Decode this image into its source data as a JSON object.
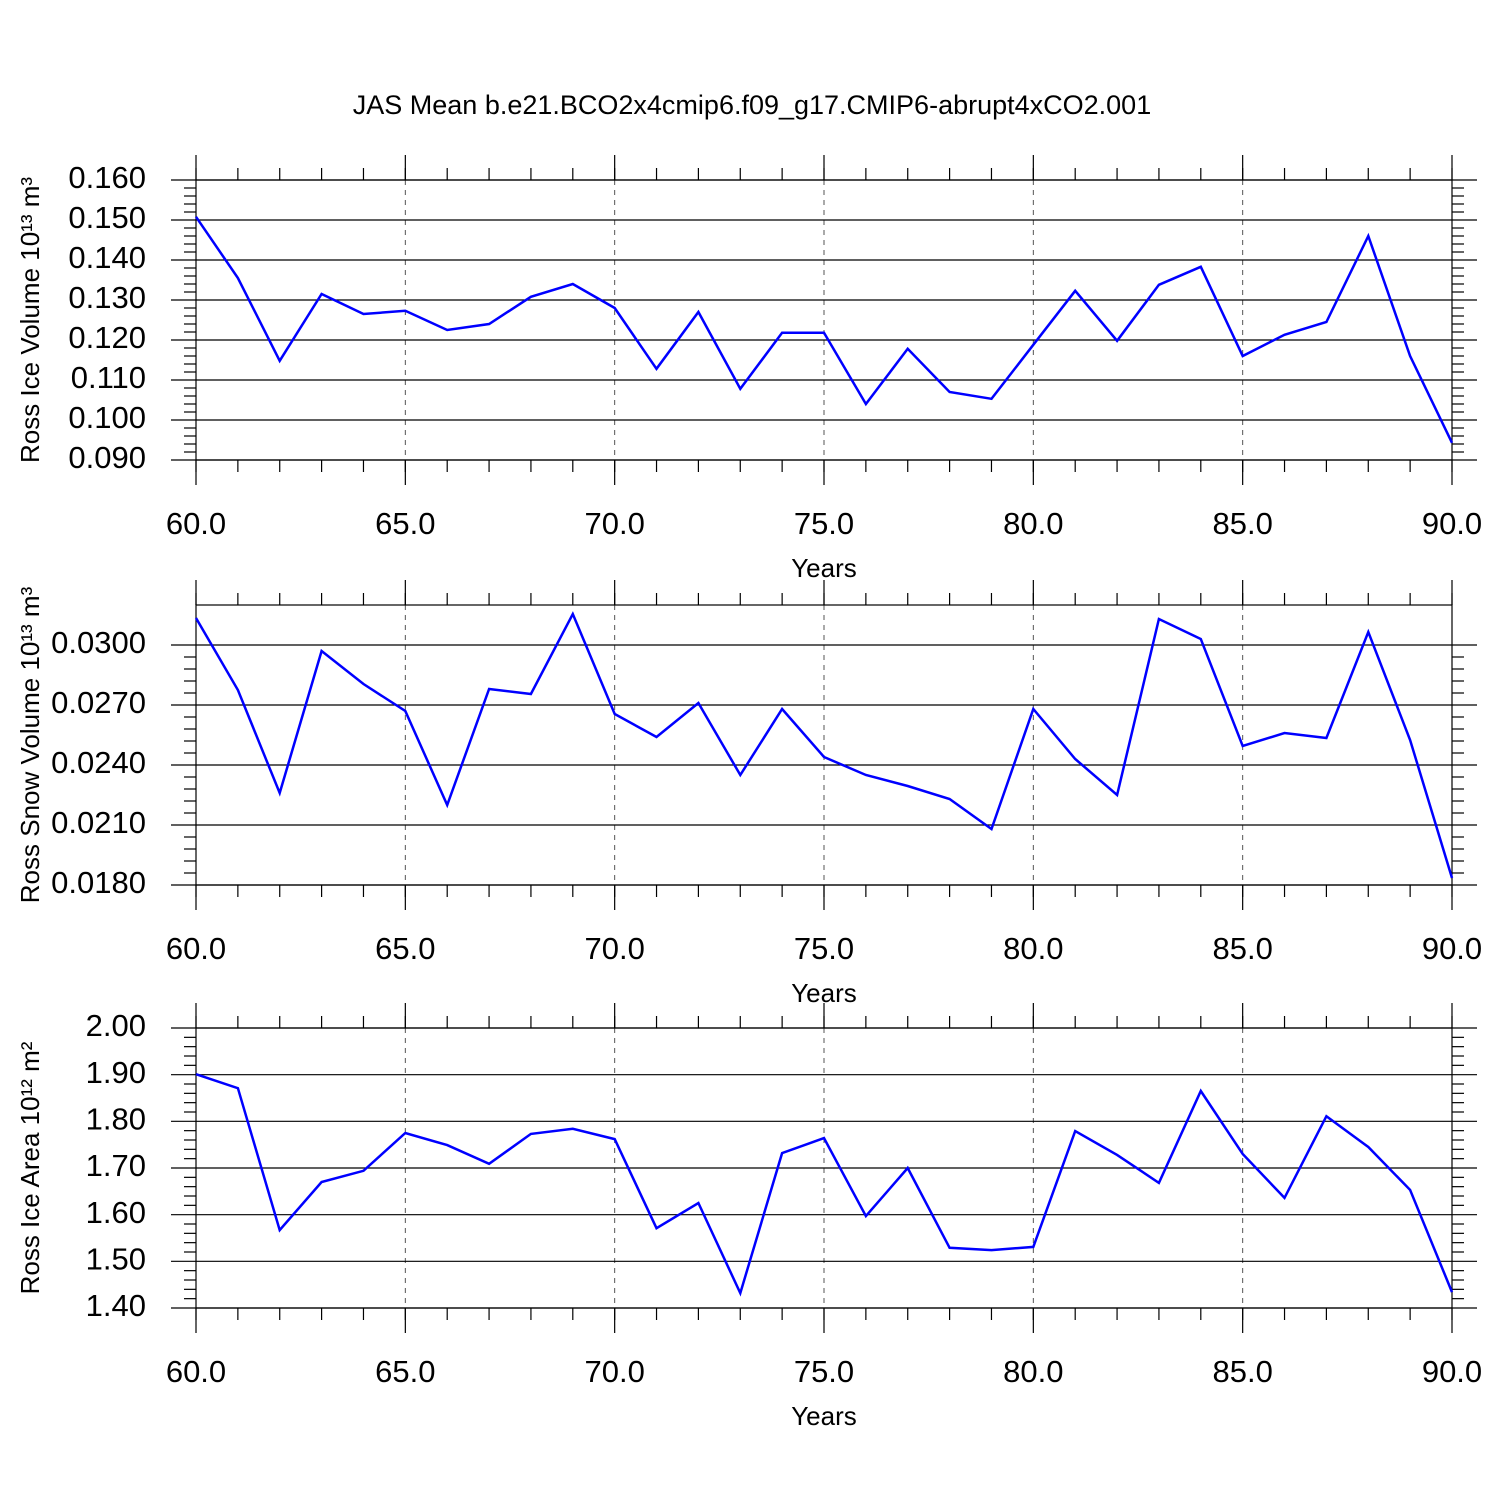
{
  "chart_data": [
    {
      "type": "line",
      "title": "JAS Mean b.e21.BCO2x4cmip6.f09_g17.CMIP6-abrupt4xCO2.001",
      "ylabel": "Ross Ice Volume 10¹³ m³",
      "xlabel": "Years",
      "x": [
        60,
        61,
        62,
        63,
        64,
        65,
        66,
        67,
        68,
        69,
        70,
        71,
        72,
        73,
        74,
        75,
        76,
        77,
        78,
        79,
        80,
        81,
        82,
        83,
        84,
        85,
        86,
        87,
        88,
        89,
        90
      ],
      "values": [
        0.1508,
        0.1355,
        0.1148,
        0.1315,
        0.1265,
        0.1273,
        0.1225,
        0.124,
        0.1308,
        0.134,
        0.128,
        0.1128,
        0.127,
        0.1078,
        0.1218,
        0.1218,
        0.104,
        0.1178,
        0.107,
        0.1053,
        0.1188,
        0.1323,
        0.1198,
        0.1338,
        0.1383,
        0.116,
        0.1213,
        0.1245,
        0.146,
        0.116,
        0.0943
      ],
      "color": "#0000ff",
      "xlim": [
        60,
        90
      ],
      "xticks": [
        {
          "value": 60,
          "label": "60.0"
        },
        {
          "value": 65,
          "label": "65.0"
        },
        {
          "value": 70,
          "label": "70.0"
        },
        {
          "value": 75,
          "label": "75.0"
        },
        {
          "value": 80,
          "label": "80.0"
        },
        {
          "value": 85,
          "label": "85.0"
        },
        {
          "value": 90,
          "label": "90.0"
        }
      ],
      "ylim": [
        0.09,
        0.16
      ],
      "yticks": [
        {
          "value": 0.09,
          "label": "0.090"
        },
        {
          "value": 0.1,
          "label": "0.100"
        },
        {
          "value": 0.11,
          "label": "0.110"
        },
        {
          "value": 0.12,
          "label": "0.120"
        },
        {
          "value": 0.13,
          "label": "0.130"
        },
        {
          "value": 0.14,
          "label": "0.140"
        },
        {
          "value": 0.15,
          "label": "0.150"
        },
        {
          "value": 0.16,
          "label": "0.160"
        }
      ],
      "xgrid": true
    },
    {
      "type": "line",
      "ylabel": "Ross Snow Volume 10¹³ m³",
      "xlabel": "Years",
      "x": [
        60,
        61,
        62,
        63,
        64,
        65,
        66,
        67,
        68,
        69,
        70,
        71,
        72,
        73,
        74,
        75,
        76,
        77,
        78,
        79,
        80,
        81,
        82,
        83,
        84,
        85,
        86,
        87,
        88,
        89,
        90
      ],
      "values": [
        0.03135,
        0.02775,
        0.0226,
        0.0297,
        0.02805,
        0.0267,
        0.022,
        0.0278,
        0.02755,
        0.03155,
        0.02655,
        0.0254,
        0.0271,
        0.0235,
        0.0268,
        0.0244,
        0.0235,
        0.02295,
        0.0223,
        0.0208,
        0.0268,
        0.0243,
        0.0225,
        0.0313,
        0.0303,
        0.02495,
        0.0256,
        0.02535,
        0.03065,
        0.02525,
        0.01835
      ],
      "color": "#0000ff",
      "xlim": [
        60,
        90
      ],
      "xticks": [
        {
          "value": 60,
          "label": "60.0"
        },
        {
          "value": 65,
          "label": "65.0"
        },
        {
          "value": 70,
          "label": "70.0"
        },
        {
          "value": 75,
          "label": "75.0"
        },
        {
          "value": 80,
          "label": "80.0"
        },
        {
          "value": 85,
          "label": "85.0"
        },
        {
          "value": 90,
          "label": "90.0"
        }
      ],
      "ylim": [
        0.018,
        0.032
      ],
      "yticks": [
        {
          "value": 0.018,
          "label": "0.0180"
        },
        {
          "value": 0.021,
          "label": "0.0210"
        },
        {
          "value": 0.024,
          "label": "0.0240"
        },
        {
          "value": 0.027,
          "label": "0.0270"
        },
        {
          "value": 0.03,
          "label": "0.0300"
        }
      ],
      "xgrid": true
    },
    {
      "type": "line",
      "ylabel": "Ross Ice Area 10¹² m²",
      "xlabel": "Years",
      "x": [
        60,
        61,
        62,
        63,
        64,
        65,
        66,
        67,
        68,
        69,
        70,
        71,
        72,
        73,
        74,
        75,
        76,
        77,
        78,
        79,
        80,
        81,
        82,
        83,
        84,
        85,
        86,
        87,
        88,
        89,
        90
      ],
      "values": [
        1.901,
        1.871,
        1.567,
        1.67,
        1.694,
        1.775,
        1.749,
        1.709,
        1.773,
        1.784,
        1.762,
        1.571,
        1.625,
        1.432,
        1.732,
        1.764,
        1.597,
        1.7,
        1.529,
        1.524,
        1.531,
        1.779,
        1.728,
        1.668,
        1.865,
        1.73,
        1.636,
        1.811,
        1.745,
        1.653,
        1.434
      ],
      "color": "#0000ff",
      "xlim": [
        60,
        90
      ],
      "xticks": [
        {
          "value": 60,
          "label": "60.0"
        },
        {
          "value": 65,
          "label": "65.0"
        },
        {
          "value": 70,
          "label": "70.0"
        },
        {
          "value": 75,
          "label": "75.0"
        },
        {
          "value": 80,
          "label": "80.0"
        },
        {
          "value": 85,
          "label": "85.0"
        },
        {
          "value": 90,
          "label": "90.0"
        }
      ],
      "ylim": [
        1.4,
        2.0
      ],
      "yticks": [
        {
          "value": 1.4,
          "label": "1.40"
        },
        {
          "value": 1.5,
          "label": "1.50"
        },
        {
          "value": 1.6,
          "label": "1.60"
        },
        {
          "value": 1.7,
          "label": "1.70"
        },
        {
          "value": 1.8,
          "label": "1.80"
        },
        {
          "value": 1.9,
          "label": "1.90"
        },
        {
          "value": 2.0,
          "label": "2.00"
        }
      ],
      "xgrid": true
    }
  ]
}
